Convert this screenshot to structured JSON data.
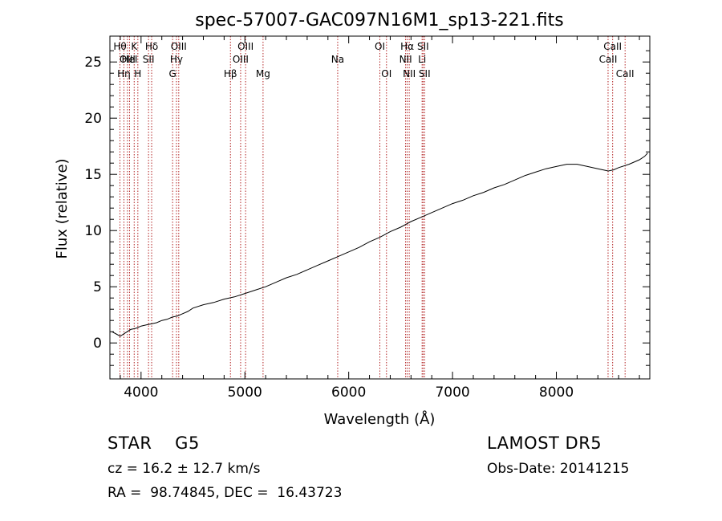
{
  "chart_data": {
    "type": "line",
    "title": "spec-57007-GAC097N16M1_sp13-221.fits",
    "xlabel": "Wavelength (Å)",
    "ylabel": "Flux (relative)",
    "xlim": [
      3700,
      8900
    ],
    "ylim": [
      -3.2,
      27.3
    ],
    "xticks": [
      4000,
      5000,
      6000,
      7000,
      8000
    ],
    "yticks": [
      0,
      5,
      10,
      15,
      20,
      25
    ],
    "grid": false,
    "line_color": "#000000",
    "marker_color": "#b22222",
    "series": [
      {
        "x": [
          3720,
          3760,
          3800,
          3850,
          3900,
          3950,
          4000,
          4050,
          4100,
          4150,
          4200,
          4250,
          4300,
          4350,
          4400,
          4450,
          4500,
          4600,
          4700,
          4800,
          4900,
          5000,
          5100,
          5200,
          5300,
          5400,
          5500,
          5600,
          5700,
          5800,
          5900,
          6000,
          6100,
          6200,
          6300,
          6400,
          6500,
          6600,
          6700,
          6800,
          6900,
          7000,
          7100,
          7200,
          7300,
          7400,
          7500,
          7600,
          7700,
          7800,
          7900,
          8000,
          8100,
          8200,
          8300,
          8400,
          8500,
          8550,
          8600,
          8700,
          8800,
          8850,
          8880
        ],
        "y": [
          1.0,
          0.8,
          0.6,
          0.9,
          1.2,
          1.3,
          1.5,
          1.6,
          1.7,
          1.8,
          2.0,
          2.1,
          2.3,
          2.4,
          2.6,
          2.8,
          3.1,
          3.4,
          3.6,
          3.9,
          4.1,
          4.4,
          4.7,
          5.0,
          5.4,
          5.8,
          6.1,
          6.5,
          6.9,
          7.3,
          7.7,
          8.1,
          8.5,
          9.0,
          9.4,
          9.9,
          10.3,
          10.8,
          11.2,
          11.6,
          12.0,
          12.4,
          12.7,
          13.1,
          13.4,
          13.8,
          14.1,
          14.5,
          14.9,
          15.2,
          15.5,
          15.7,
          15.9,
          15.9,
          15.7,
          15.5,
          15.3,
          15.4,
          15.6,
          15.9,
          16.3,
          16.6,
          16.9
        ]
      }
    ],
    "line_markers": [
      {
        "x": 3797,
        "label": "Hθ",
        "row": 1
      },
      {
        "x": 3835,
        "label": "Hη",
        "row": 3
      },
      {
        "x": 3869,
        "label": "OIII",
        "row": 2
      },
      {
        "x": 3889,
        "label": "HeI",
        "row": 2
      },
      {
        "x": 3934,
        "label": "K",
        "row": 1
      },
      {
        "x": 3969,
        "label": "H",
        "row": 3
      },
      {
        "x": 4072,
        "label": "SII",
        "row": 2
      },
      {
        "x": 4102,
        "label": "Hδ",
        "row": 1
      },
      {
        "x": 4304,
        "label": "G",
        "row": 3
      },
      {
        "x": 4341,
        "label": "Hγ",
        "row": 2
      },
      {
        "x": 4363,
        "label": "OIII",
        "row": 1
      },
      {
        "x": 4861,
        "label": "Hβ",
        "row": 3
      },
      {
        "x": 4959,
        "label": "OIII",
        "row": 2
      },
      {
        "x": 5007,
        "label": "OIII",
        "row": 1
      },
      {
        "x": 5175,
        "label": "Mg",
        "row": 3
      },
      {
        "x": 5894,
        "label": "Na",
        "row": 2
      },
      {
        "x": 6300,
        "label": "OI",
        "row": 1
      },
      {
        "x": 6364,
        "label": "OI",
        "row": 3
      },
      {
        "x": 6548,
        "label": "NII",
        "row": 2
      },
      {
        "x": 6563,
        "label": "Hα",
        "row": 1
      },
      {
        "x": 6583,
        "label": "NII",
        "row": 3
      },
      {
        "x": 6707,
        "label": "Li",
        "row": 2
      },
      {
        "x": 6716,
        "label": "SII",
        "row": 1
      },
      {
        "x": 6731,
        "label": "SII",
        "row": 3
      },
      {
        "x": 8498,
        "label": "CaII",
        "row": 2
      },
      {
        "x": 8542,
        "label": "CaII",
        "row": 1
      },
      {
        "x": 8662,
        "label": "CaII",
        "row": 3
      }
    ]
  },
  "info": {
    "object": "STAR    G5",
    "survey": "LAMOST DR5",
    "cz": "cz = 16.2 ± 12.7 km/s",
    "obs_date": "Obs-Date: 20141215",
    "coords": "RA =  98.74845, DEC =  16.43723"
  }
}
